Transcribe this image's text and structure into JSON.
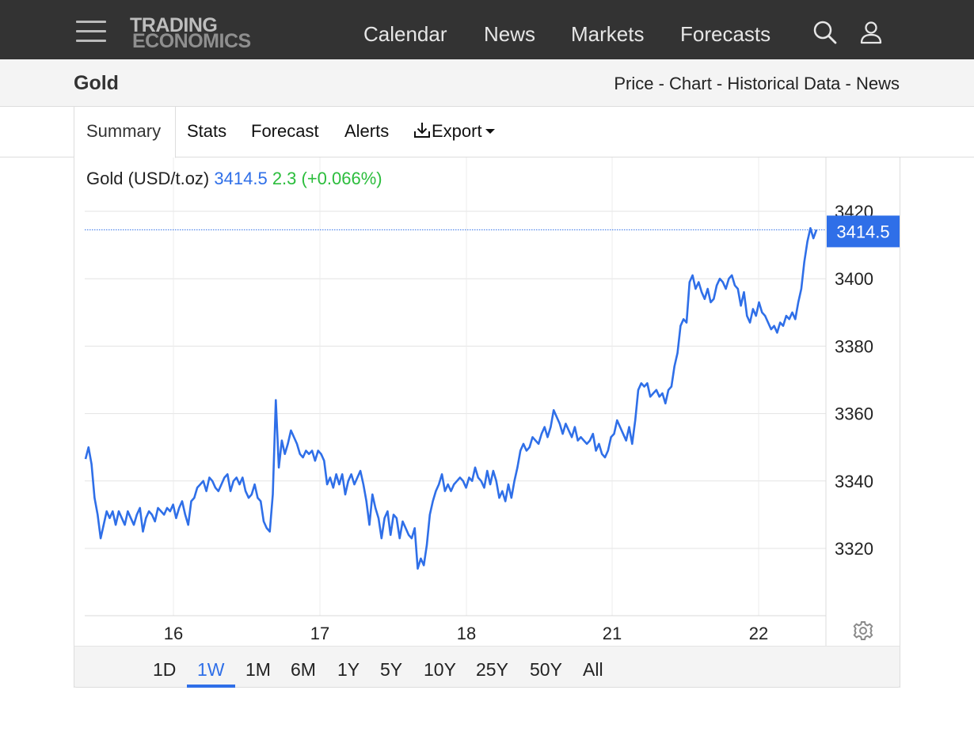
{
  "header": {
    "logo_line1": "TRADING",
    "logo_line2": "ECONOMICS",
    "nav": [
      "Calendar",
      "News",
      "Markets",
      "Forecasts"
    ],
    "icons": [
      "menu-icon",
      "search-icon",
      "user-icon"
    ]
  },
  "page": {
    "title": "Gold",
    "subnav": [
      "Price",
      "Chart",
      "Historical Data",
      "News"
    ],
    "subnav_separator": " - "
  },
  "tabs": [
    "Summary",
    "Stats",
    "Forecast",
    "Alerts",
    "Export"
  ],
  "active_tab": "Summary",
  "quote": {
    "name": "Gold (USD/t.oz)",
    "price": "3414.5",
    "change": "2.3 (+0.066%)"
  },
  "range_buttons": [
    "1D",
    "1W",
    "1M",
    "6M",
    "1Y",
    "5Y",
    "10Y",
    "25Y",
    "50Y",
    "All"
  ],
  "active_range": "1W",
  "colors": {
    "line": "#2f6fe8",
    "positive_change": "#2bbd3c",
    "price_label_bg": "#2f6fe8",
    "header_bg": "#333333"
  },
  "chart_data": {
    "type": "line",
    "title": "",
    "xlabel": "",
    "ylabel": "",
    "x_ticks": [
      "16",
      "17",
      "18",
      "21",
      "22"
    ],
    "y_ticks": [
      3320,
      3340,
      3360,
      3380,
      3400,
      3420
    ],
    "ylim": [
      3300,
      3425
    ],
    "last_value_label": "3414.5",
    "grid": true,
    "y_axis_side": "right",
    "series": [
      {
        "values": [
          3346.5,
          3350,
          3345,
          3335,
          3330,
          3323,
          3327,
          3331,
          3329,
          3331,
          3327,
          3331,
          3329,
          3327,
          3331,
          3329,
          3327,
          3330,
          3332,
          3325,
          3329,
          3331,
          3330,
          3328,
          3332,
          3331,
          3330,
          3332,
          3331,
          3333,
          3329,
          3332,
          3334,
          3330,
          3327,
          3334,
          3335,
          3338,
          3339,
          3340,
          3337,
          3341,
          3340,
          3338,
          3337,
          3339,
          3341,
          3342,
          3337,
          3340,
          3341,
          3339,
          3341,
          3337,
          3335,
          3336,
          3339,
          3335,
          3334,
          3328,
          3326,
          3325,
          3336,
          3364,
          3344,
          3352,
          3348,
          3351,
          3355,
          3353,
          3351,
          3348,
          3347,
          3349,
          3348,
          3349,
          3346,
          3349,
          3348,
          3346,
          3339,
          3341,
          3338,
          3342,
          3339,
          3342,
          3336,
          3340,
          3342,
          3339,
          3341,
          3343,
          3339,
          3334,
          3327,
          3336,
          3332,
          3329,
          3323,
          3329,
          3331,
          3324,
          3330,
          3329,
          3323,
          3328,
          3326,
          3324,
          3323,
          3326,
          3314,
          3317,
          3315,
          3321,
          3330,
          3334,
          3337,
          3339,
          3342,
          3337,
          3339,
          3337,
          3339,
          3340,
          3341,
          3340,
          3338,
          3341,
          3340,
          3344,
          3341,
          3340,
          3338,
          3343,
          3339,
          3343,
          3340,
          3335,
          3337,
          3334,
          3339,
          3335,
          3340,
          3344,
          3349,
          3351,
          3349,
          3350,
          3353,
          3352,
          3351,
          3354,
          3356,
          3353,
          3356,
          3361,
          3359,
          3357,
          3354,
          3357,
          3355,
          3353,
          3356,
          3352,
          3353,
          3352,
          3351,
          3352,
          3354,
          3349,
          3351,
          3348,
          3347,
          3349,
          3353,
          3354,
          3358,
          3356,
          3354,
          3352,
          3356,
          3351,
          3358,
          3367,
          3369,
          3368,
          3369,
          3365,
          3366,
          3367,
          3365,
          3366,
          3363,
          3367,
          3368,
          3374,
          3378,
          3386,
          3388,
          3387,
          3399,
          3401,
          3397,
          3399,
          3396,
          3394,
          3397,
          3393,
          3394,
          3398,
          3400,
          3399,
          3397,
          3400,
          3401,
          3398,
          3397,
          3392,
          3396,
          3389,
          3387,
          3391,
          3389,
          3393,
          3390,
          3389,
          3387,
          3385,
          3386,
          3384,
          3387,
          3386,
          3389,
          3388,
          3390,
          3388,
          3393,
          3397,
          3405,
          3411,
          3415,
          3412,
          3414.5
        ]
      }
    ]
  }
}
